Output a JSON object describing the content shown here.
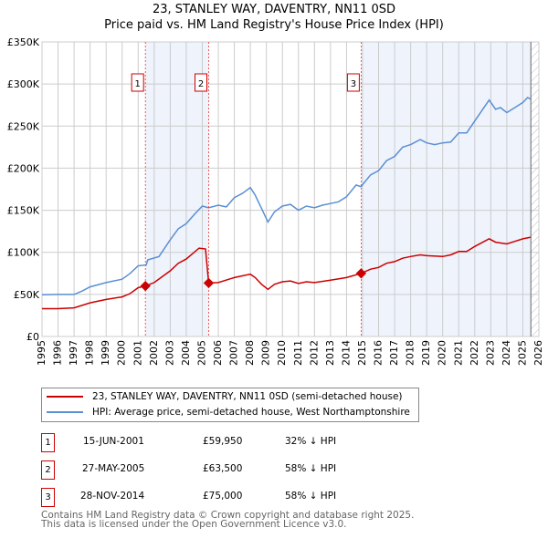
{
  "title": "23, STANLEY WAY, DAVENTRY, NN11 0SD",
  "subtitle": "Price paid vs. HM Land Registry's House Price Index (HPI)",
  "chart_data": {
    "type": "line",
    "title": "23, STANLEY WAY, DAVENTRY, NN11 0SD",
    "subtitle": "Price paid vs. HM Land Registry's House Price Index (HPI)",
    "xlim": [
      1995,
      2026
    ],
    "ylim": [
      0,
      350000
    ],
    "x_ticks": [
      "1995",
      "1996",
      "1997",
      "1998",
      "1999",
      "2000",
      "2001",
      "2002",
      "2003",
      "2004",
      "2005",
      "2006",
      "2007",
      "2008",
      "2009",
      "2010",
      "2011",
      "2012",
      "2013",
      "2014",
      "2015",
      "2016",
      "2017",
      "2018",
      "2019",
      "2020",
      "2021",
      "2022",
      "2023",
      "2024",
      "2025",
      "2026"
    ],
    "y_ticks": [
      {
        "v": 0,
        "label": "£0"
      },
      {
        "v": 50000,
        "label": "£50K"
      },
      {
        "v": 100000,
        "label": "£100K"
      },
      {
        "v": 150000,
        "label": "£150K"
      },
      {
        "v": 200000,
        "label": "£200K"
      },
      {
        "v": 250000,
        "label": "£250K"
      },
      {
        "v": 300000,
        "label": "£300K"
      },
      {
        "v": 350000,
        "label": "£350K"
      }
    ],
    "grid": true,
    "shaded_periods": [
      [
        2001.45,
        2005.4
      ],
      [
        2014.91,
        2025.5
      ]
    ],
    "hatched_from": 2025.5,
    "series": [
      {
        "name": "23, STANLEY WAY, DAVENTRY, NN11 0SD (semi-detached house)",
        "color": "#cc0000",
        "x": [
          1995,
          1996,
          1997,
          1998,
          1999,
          2000,
          2000.5,
          2001,
          2001.45,
          2002,
          2003,
          2003.5,
          2004,
          2004.8,
          2005.2,
          2005.4,
          2006,
          2007,
          2008,
          2008.3,
          2008.7,
          2009.1,
          2009.5,
          2010,
          2010.5,
          2011,
          2011.5,
          2012,
          2013,
          2014,
          2014.91,
          2015.5,
          2016,
          2016.5,
          2017,
          2017.5,
          2018,
          2018.6,
          2019,
          2020,
          2020.5,
          2021,
          2021.5,
          2022,
          2022.9,
          2023.3,
          2024,
          2024.5,
          2025,
          2025.5
        ],
        "y": [
          33000,
          33000,
          34000,
          40000,
          44000,
          47000,
          51000,
          58000,
          59950,
          64000,
          78000,
          87000,
          92000,
          105000,
          104000,
          63500,
          64000,
          70000,
          74000,
          70000,
          62000,
          56000,
          62000,
          65000,
          66000,
          63000,
          65000,
          64000,
          67000,
          70000,
          75000,
          80000,
          82000,
          87000,
          89000,
          93000,
          95000,
          97000,
          96000,
          95000,
          97000,
          101000,
          101000,
          107000,
          116000,
          112000,
          110000,
          113000,
          116000,
          118000
        ]
      },
      {
        "name": "HPI: Average price, semi-detached house, West Northamptonshire",
        "color": "#5b8fd4",
        "x": [
          1995,
          1996,
          1997,
          1997.5,
          1998,
          1999,
          2000,
          2000.5,
          2001,
          2001.5,
          2001.6,
          2002.3,
          2003,
          2003.5,
          2004,
          2004.5,
          2005,
          2005.4,
          2006,
          2006.5,
          2007,
          2007.5,
          2008,
          2008.3,
          2008.7,
          2009.1,
          2009.5,
          2010,
          2010.5,
          2011,
          2011.5,
          2012,
          2012.5,
          2013,
          2013.5,
          2014,
          2014.6,
          2014.9,
          2015.5,
          2016,
          2016.5,
          2017,
          2017.5,
          2018,
          2018.6,
          2019,
          2019.5,
          2020,
          2020.5,
          2021,
          2021.5,
          2022,
          2022.5,
          2022.9,
          2023.3,
          2023.6,
          2024,
          2024.5,
          2025,
          2025.3,
          2025.5
        ],
        "y": [
          49500,
          50000,
          50000,
          54000,
          59000,
          64000,
          68000,
          75000,
          84000,
          85000,
          91000,
          95000,
          115000,
          128000,
          134000,
          145000,
          155000,
          153000,
          156000,
          154000,
          165000,
          170000,
          177000,
          168000,
          152000,
          136000,
          148000,
          155000,
          157000,
          150000,
          155000,
          153000,
          156000,
          158000,
          160000,
          166000,
          180000,
          178000,
          192000,
          197000,
          209000,
          214000,
          225000,
          228000,
          234000,
          230000,
          228000,
          230000,
          231000,
          242000,
          242000,
          256000,
          270000,
          281000,
          270000,
          272000,
          266000,
          272000,
          278000,
          284000,
          282000
        ]
      }
    ],
    "sales": [
      {
        "num": "1",
        "x": 2001.45,
        "y": 59950
      },
      {
        "num": "2",
        "x": 2005.4,
        "y": 63500
      },
      {
        "num": "3",
        "x": 2014.91,
        "y": 75000
      }
    ]
  },
  "legend": {
    "property": "23, STANLEY WAY, DAVENTRY, NN11 0SD (semi-detached house)",
    "hpi": "HPI: Average price, semi-detached house, West Northamptonshire"
  },
  "transactions": [
    {
      "num": "1",
      "date": "15-JUN-2001",
      "price": "£59,950",
      "diff": "32% ↓ HPI"
    },
    {
      "num": "2",
      "date": "27-MAY-2005",
      "price": "£63,500",
      "diff": "58% ↓ HPI"
    },
    {
      "num": "3",
      "date": "28-NOV-2014",
      "price": "£75,000",
      "diff": "58% ↓ HPI"
    }
  ],
  "footer": {
    "line1": "Contains HM Land Registry data © Crown copyright and database right 2025.",
    "line2": "This data is licensed under the Open Government Licence v3.0."
  }
}
